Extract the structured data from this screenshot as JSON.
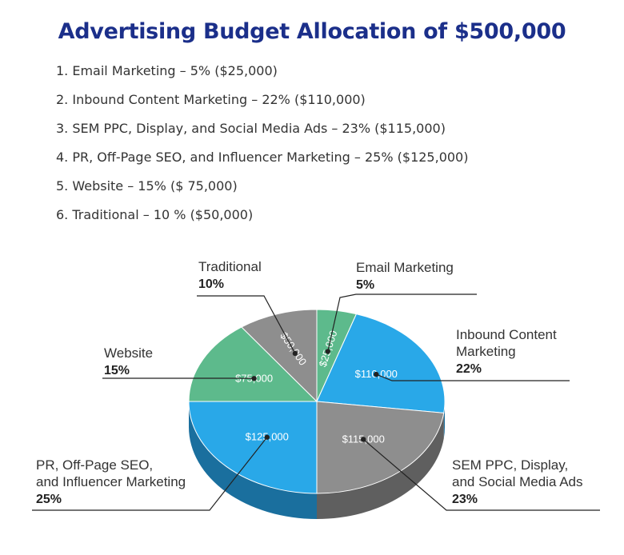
{
  "title": "Advertising Budget Allocation of $500,000",
  "list": [
    "1. Email Marketing – 5% ($25,000)",
    "2. Inbound Content Marketing – 22% ($110,000)",
    "3. SEM PPC, Display, and Social Media Ads – 23% ($115,000)",
    "4. PR, Off-Page SEO, and Influencer Marketing – 25% ($125,000)",
    "5. Website – 15% ($ 75,000)",
    "6. Traditional – 10 % ($50,000)"
  ],
  "chart_data": {
    "type": "pie",
    "title": "",
    "slices": [
      {
        "label_lines": [
          "Email Marketing"
        ],
        "pct_label": "5%",
        "value": 25000,
        "value_label": "$25,000",
        "color": "#5dba8c",
        "side_color": "#3d8a63"
      },
      {
        "label_lines": [
          "Inbound Content",
          "Marketing"
        ],
        "pct_label": "22%",
        "value": 110000,
        "value_label": "$110,000",
        "color": "#29a8e8",
        "side_color": "#1a6f9e"
      },
      {
        "label_lines": [
          "SEM PPC, Display,",
          "and Social Media Ads"
        ],
        "pct_label": "23%",
        "value": 115000,
        "value_label": "$115,000",
        "color": "#8e8e8e",
        "side_color": "#5f5f5f"
      },
      {
        "label_lines": [
          "PR, Off-Page SEO,",
          "and Influencer Marketing"
        ],
        "pct_label": "25%",
        "value": 125000,
        "value_label": "$125,000",
        "color": "#29a8e8",
        "side_color": "#1a6f9e"
      },
      {
        "label_lines": [
          "Website"
        ],
        "pct_label": "15%",
        "value": 75000,
        "value_label": "$75,000",
        "color": "#5dba8c",
        "side_color": "#3d8a63"
      },
      {
        "label_lines": [
          "Traditional"
        ],
        "pct_label": "10%",
        "value": 50000,
        "value_label": "$50,000",
        "color": "#8e8e8e",
        "side_color": "#5f5f5f"
      }
    ]
  }
}
